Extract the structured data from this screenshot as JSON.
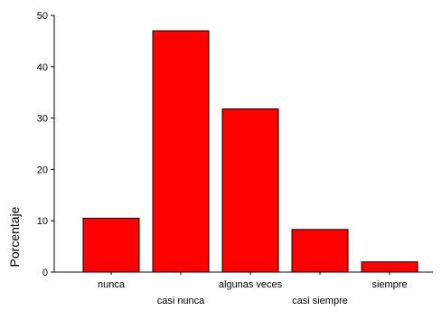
{
  "chart_data": {
    "type": "bar",
    "categories": [
      "nunca",
      "casi nunca",
      "algunas veces",
      "casi siempre",
      "siempre"
    ],
    "values": [
      10.5,
      47,
      31.8,
      8.3,
      2
    ],
    "title": "",
    "xlabel": "",
    "ylabel": "Porcentaje",
    "ylim": [
      0,
      50
    ],
    "yticks": [
      0,
      10,
      20,
      30,
      40,
      50
    ],
    "grid": false,
    "bar_color": "#ff0000",
    "bar_edge_color": "#000000"
  }
}
